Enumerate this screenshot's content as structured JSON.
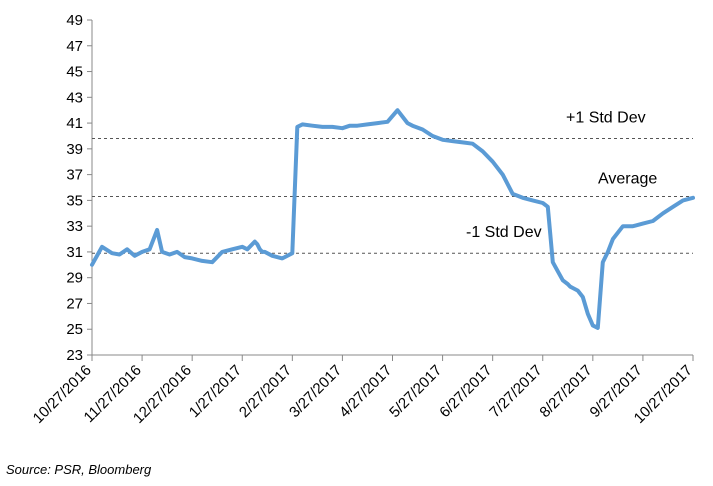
{
  "chart_data": {
    "type": "line",
    "title": "",
    "xlabel": "",
    "ylabel": "",
    "ylim": [
      23,
      49
    ],
    "y_ticks": [
      23,
      25,
      27,
      29,
      31,
      33,
      35,
      37,
      39,
      41,
      43,
      45,
      47,
      49
    ],
    "x_tick_labels": [
      "10/27/2016",
      "11/27/2016",
      "12/27/2016",
      "1/27/2017",
      "2/27/2017",
      "3/27/2017",
      "4/27/2017",
      "5/27/2017",
      "6/27/2017",
      "7/27/2017",
      "8/27/2017",
      "9/27/2017",
      "10/27/2017"
    ],
    "grid": false,
    "legend": "none",
    "series_color": "#5b9bd5",
    "reference_lines": [
      {
        "label": "+1 Std Dev",
        "value": 39.8
      },
      {
        "label": "Average",
        "value": 35.3
      },
      {
        "label": "-1 Std Dev",
        "value": 30.9
      }
    ],
    "series": [
      {
        "x": [
          0,
          0.2,
          0.4,
          0.55,
          0.7,
          0.85,
          1.0,
          1.15,
          1.3,
          1.4,
          1.55,
          1.7,
          1.85,
          2.0,
          2.2,
          2.4,
          2.6,
          2.8,
          3.0,
          3.1,
          3.2,
          3.25,
          3.3,
          3.35,
          3.4,
          3.45,
          3.5,
          3.6,
          3.8,
          4.0,
          4.1,
          4.2,
          4.4,
          4.6,
          4.8,
          5.0,
          5.15,
          5.3,
          5.5,
          5.7,
          5.9,
          6.1,
          6.3,
          6.4,
          6.6,
          6.8,
          7.0,
          7.2,
          7.4,
          7.6,
          7.8,
          8.0,
          8.2,
          8.4,
          8.6,
          8.8,
          9.0,
          9.1,
          9.2,
          9.3,
          9.4,
          9.5,
          9.55,
          9.6,
          9.7,
          9.8,
          9.9,
          10.0,
          10.1,
          10.2,
          10.3,
          10.4,
          10.6,
          10.8,
          11.0,
          11.2,
          11.4,
          11.6,
          11.8,
          12.0
        ],
        "values": [
          30.0,
          31.4,
          30.9,
          30.8,
          31.2,
          30.7,
          31.0,
          31.2,
          32.7,
          31.0,
          30.8,
          31.0,
          30.6,
          30.5,
          30.3,
          30.2,
          31.0,
          31.2,
          31.4,
          31.2,
          31.6,
          31.8,
          31.6,
          31.2,
          31.0,
          31.0,
          30.9,
          30.7,
          30.5,
          30.9,
          40.7,
          40.9,
          40.8,
          40.7,
          40.7,
          40.6,
          40.8,
          40.8,
          40.9,
          41.0,
          41.1,
          42.0,
          41.0,
          40.8,
          40.5,
          40.0,
          39.7,
          39.6,
          39.5,
          39.4,
          38.8,
          38.0,
          37.0,
          35.5,
          35.2,
          35.0,
          34.8,
          34.5,
          30.2,
          29.5,
          28.8,
          28.5,
          28.3,
          28.2,
          28.0,
          27.5,
          26.2,
          25.3,
          25.1,
          30.2,
          31.0,
          32.0,
          33.0,
          33.0,
          33.2,
          33.4,
          34.0,
          34.5,
          35.0,
          35.2
        ]
      }
    ]
  },
  "source_note": "Source: PSR, Bloomberg"
}
